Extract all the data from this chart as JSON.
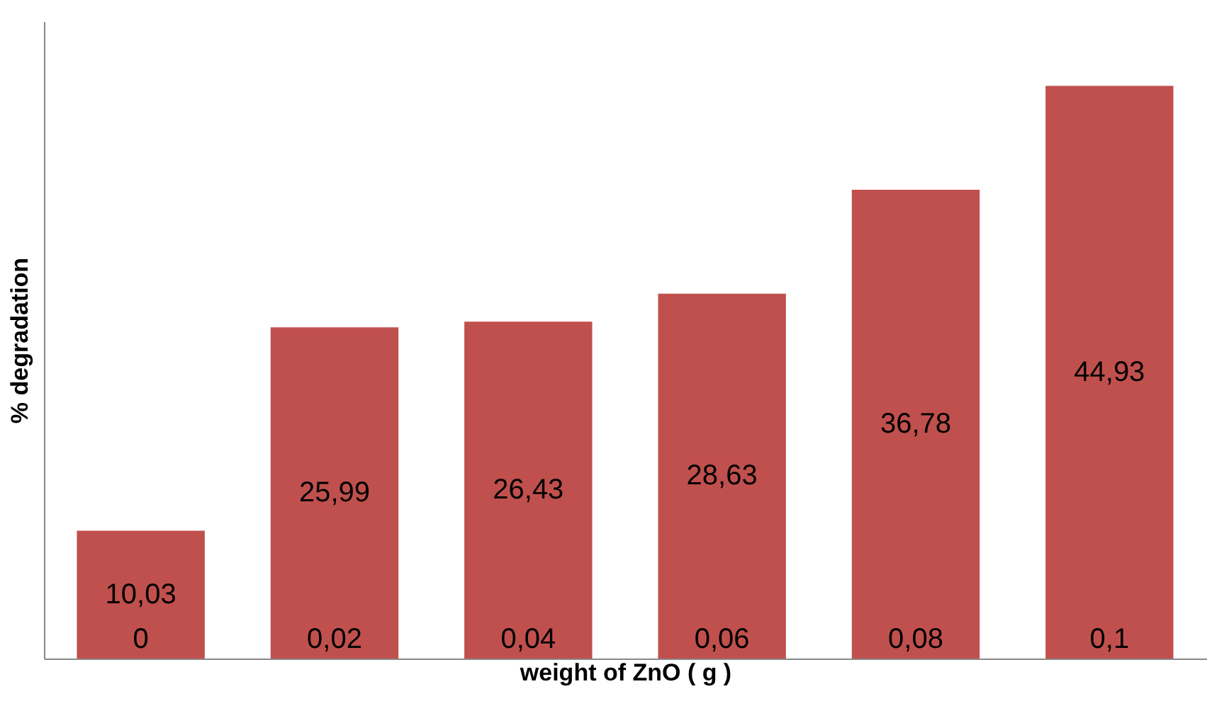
{
  "chart_data": {
    "type": "bar",
    "xlabel": "weight of ZnO ( g )",
    "ylabel": "% degradation",
    "categories": [
      "0",
      "0,02",
      "0,04",
      "0,06",
      "0,08",
      "0,1"
    ],
    "values": [
      10.03,
      25.99,
      26.43,
      28.63,
      36.78,
      44.93
    ],
    "value_labels": [
      "10,03",
      "25,99",
      "26,43",
      "28,63",
      "36,78",
      "44,93"
    ],
    "color": "#c0504d",
    "ylim": [
      0,
      50
    ],
    "tick_labels": "x",
    "grid": false
  }
}
